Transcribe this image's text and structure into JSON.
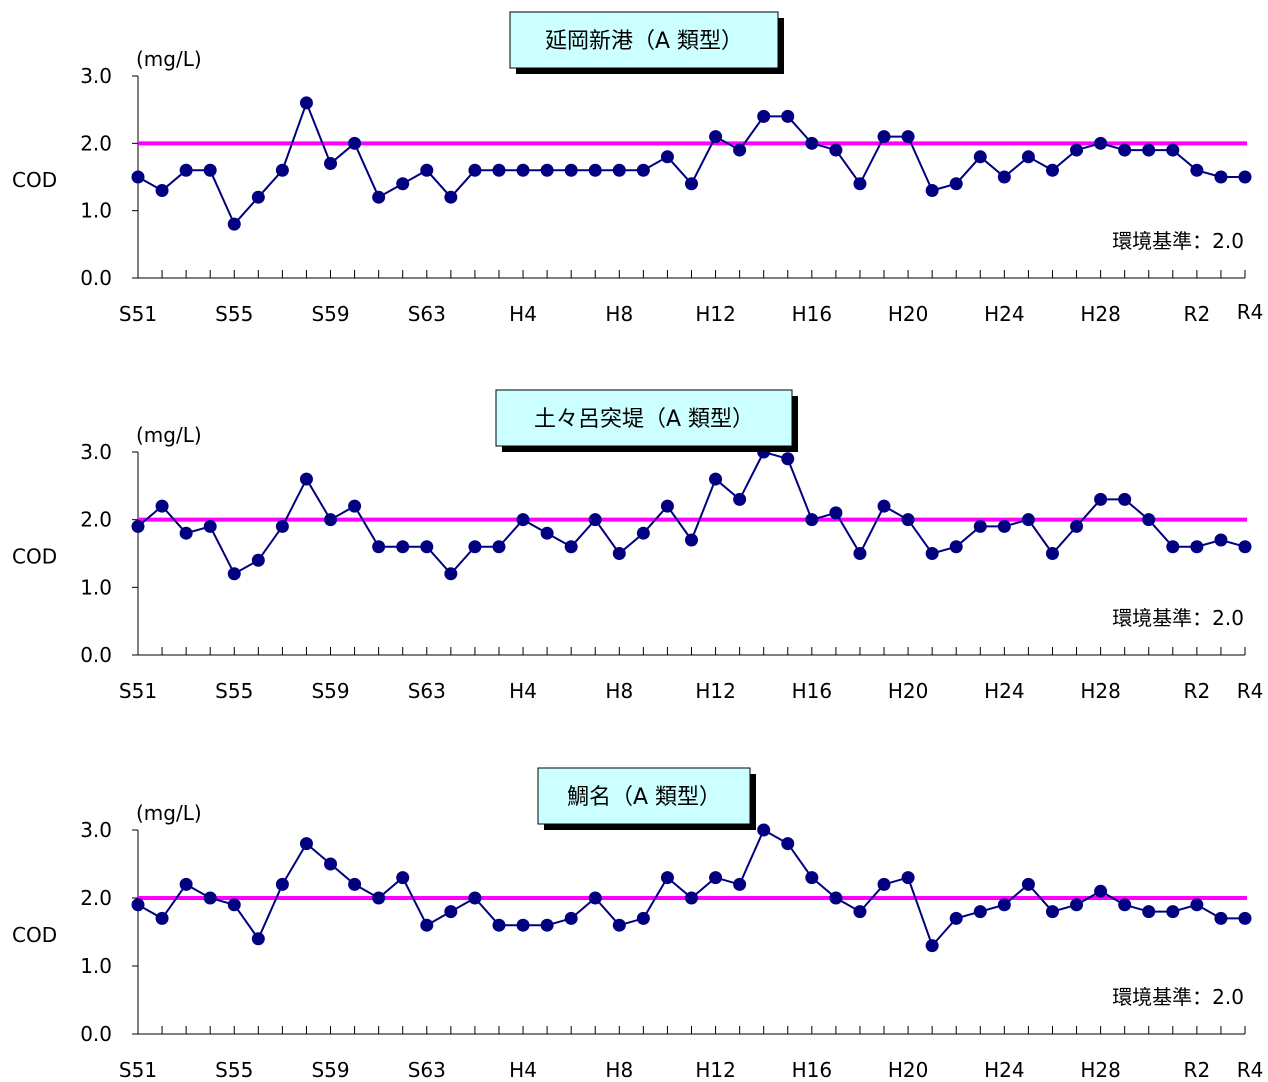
{
  "chart_data": [
    {
      "type": "line",
      "title": "延岡新港（A 類型）",
      "ylabel": "COD",
      "unit": "(mg/L)",
      "ylim": [
        0,
        3
      ],
      "yticks": [
        "0.0",
        "1.0",
        "2.0",
        "3.0"
      ],
      "x_tick_labels": [
        "S51",
        "S55",
        "S59",
        "S63",
        "H4",
        "H8",
        "H12",
        "H16",
        "H20",
        "H24",
        "H28",
        "R2",
        "R4"
      ],
      "x": [
        "S51",
        "S52",
        "S53",
        "S54",
        "S55",
        "S56",
        "S57",
        "S58",
        "S59",
        "S60",
        "S61",
        "S62",
        "S63",
        "H1",
        "H2",
        "H3",
        "H4",
        "H5",
        "H6",
        "H7",
        "H8",
        "H9",
        "H10",
        "H11",
        "H12",
        "H13",
        "H14",
        "H15",
        "H16",
        "H17",
        "H18",
        "H19",
        "H20",
        "H21",
        "H22",
        "H23",
        "H24",
        "H25",
        "H26",
        "H27",
        "H28",
        "H29",
        "H30",
        "R1",
        "R2",
        "R3",
        "R4"
      ],
      "series": [
        {
          "values": [
            1.5,
            1.3,
            1.6,
            1.6,
            0.8,
            1.2,
            1.6,
            2.6,
            1.7,
            2.0,
            1.2,
            1.4,
            1.6,
            1.2,
            1.6,
            1.6,
            1.6,
            1.6,
            1.6,
            1.6,
            1.6,
            1.6,
            1.8,
            1.4,
            2.1,
            1.9,
            2.4,
            2.4,
            2.0,
            1.9,
            1.4,
            2.1,
            2.1,
            1.3,
            1.4,
            1.8,
            1.5,
            1.8,
            1.6,
            1.9,
            2.0,
            1.9,
            1.9,
            1.9,
            1.6,
            1.5,
            1.5
          ]
        }
      ],
      "standard": {
        "value": 2.0,
        "label": "環境基準：2.0"
      }
    },
    {
      "type": "line",
      "title": "土々呂突堤（A 類型）",
      "ylabel": "COD",
      "unit": "(mg/L)",
      "ylim": [
        0,
        3
      ],
      "yticks": [
        "0.0",
        "1.0",
        "2.0",
        "3.0"
      ],
      "x_tick_labels": [
        "S51",
        "S55",
        "S59",
        "S63",
        "H4",
        "H8",
        "H12",
        "H16",
        "H20",
        "H24",
        "H28",
        "R2",
        "R4"
      ],
      "x": [
        "S51",
        "S52",
        "S53",
        "S54",
        "S55",
        "S56",
        "S57",
        "S58",
        "S59",
        "S60",
        "S61",
        "S62",
        "S63",
        "H1",
        "H2",
        "H3",
        "H4",
        "H5",
        "H6",
        "H7",
        "H8",
        "H9",
        "H10",
        "H11",
        "H12",
        "H13",
        "H14",
        "H15",
        "H16",
        "H17",
        "H18",
        "H19",
        "H20",
        "H21",
        "H22",
        "H23",
        "H24",
        "H25",
        "H26",
        "H27",
        "H28",
        "H29",
        "H30",
        "R1",
        "R2",
        "R3",
        "R4"
      ],
      "series": [
        {
          "values": [
            1.9,
            2.2,
            1.8,
            1.9,
            1.2,
            1.4,
            1.9,
            2.6,
            2.0,
            2.2,
            1.6,
            1.6,
            1.6,
            1.2,
            1.6,
            1.6,
            2.0,
            1.8,
            1.6,
            2.0,
            1.5,
            1.8,
            2.2,
            1.7,
            2.6,
            2.3,
            3.0,
            2.9,
            2.0,
            2.1,
            1.5,
            2.2,
            2.0,
            1.5,
            1.6,
            1.9,
            1.9,
            2.0,
            1.5,
            1.9,
            2.3,
            2.3,
            2.0,
            1.6,
            1.6,
            1.7,
            1.6
          ]
        }
      ],
      "standard": {
        "value": 2.0,
        "label": "環境基準：2.0"
      }
    },
    {
      "type": "line",
      "title": "鯛名（A 類型）",
      "ylabel": "COD",
      "unit": "(mg/L)",
      "ylim": [
        0,
        3
      ],
      "yticks": [
        "0.0",
        "1.0",
        "2.0",
        "3.0"
      ],
      "x_tick_labels": [
        "S51",
        "S55",
        "S59",
        "S63",
        "H4",
        "H8",
        "H12",
        "H16",
        "H20",
        "H24",
        "H28",
        "R2",
        "R4"
      ],
      "x": [
        "S51",
        "S52",
        "S53",
        "S54",
        "S55",
        "S56",
        "S57",
        "S58",
        "S59",
        "S60",
        "S61",
        "S62",
        "S63",
        "H1",
        "H2",
        "H3",
        "H4",
        "H5",
        "H6",
        "H7",
        "H8",
        "H9",
        "H10",
        "H11",
        "H12",
        "H13",
        "H14",
        "H15",
        "H16",
        "H17",
        "H18",
        "H19",
        "H20",
        "H21",
        "H22",
        "H23",
        "H24",
        "H25",
        "H26",
        "H27",
        "H28",
        "H29",
        "H30",
        "R1",
        "R2",
        "R3",
        "R4"
      ],
      "series": [
        {
          "values": [
            1.9,
            1.7,
            2.2,
            2.0,
            1.9,
            1.4,
            2.2,
            2.8,
            2.5,
            2.2,
            2.0,
            2.3,
            1.6,
            1.8,
            2.0,
            1.6,
            1.6,
            1.6,
            1.7,
            2.0,
            1.6,
            1.7,
            2.3,
            2.0,
            2.3,
            2.2,
            3.0,
            2.8,
            2.3,
            2.0,
            1.8,
            2.2,
            2.3,
            1.3,
            1.7,
            1.8,
            1.9,
            2.2,
            1.8,
            1.9,
            2.1,
            1.9,
            1.8,
            1.8,
            1.9,
            1.7,
            1.7
          ]
        }
      ],
      "standard": {
        "value": 2.0,
        "label": "環境基準：2.0"
      }
    }
  ],
  "colors": {
    "series_line": "#000080",
    "series_marker": "#000080",
    "standard_line": "#ff00ff",
    "title_bg": "#ccffff",
    "title_shadow": "#000000",
    "axis": "#000000"
  }
}
